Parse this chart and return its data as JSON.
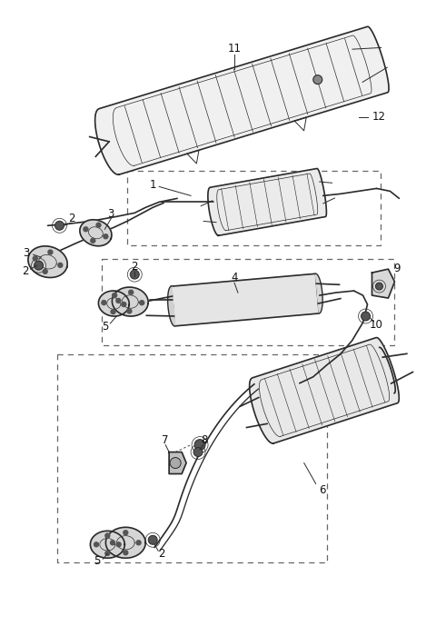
{
  "bg_color": "#ffffff",
  "line_color": "#2a2a2a",
  "label_color": "#111111",
  "dash_color": "#666666",
  "figsize": [
    4.8,
    7.0
  ],
  "dpi": 100
}
